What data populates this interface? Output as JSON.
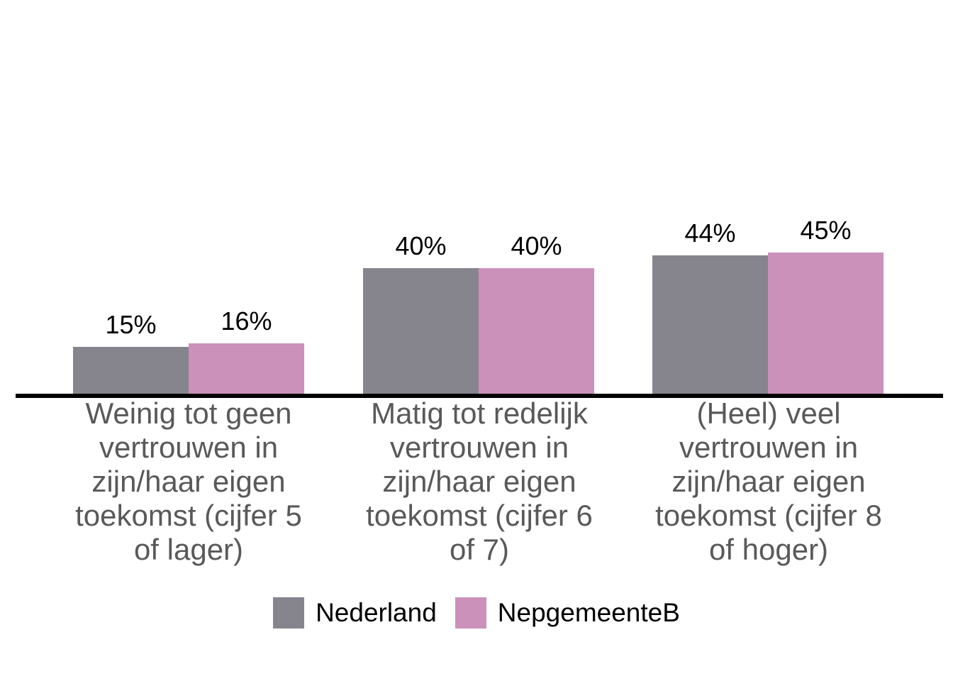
{
  "chart_data": {
    "type": "bar",
    "title": "",
    "xlabel": "",
    "ylabel": "",
    "ylim": [
      0,
      100
    ],
    "unit": "percent",
    "grid": false,
    "legend_position": "bottom-center",
    "background_color": "#FFFFFF",
    "axis_line_color": "#000000",
    "category_label_color": "#595959",
    "value_label_color": "#000000",
    "categories": [
      "Weinig tot geen\nvertrouwen in\nzijn/haar eigen\ntoekomst (cijfer 5\nof lager)",
      "Matig tot redelijk\nvertrouwen in\nzijn/haar eigen\ntoekomst (cijfer 6\nof 7)",
      "(Heel) veel\nvertrouwen in\nzijn/haar eigen\ntoekomst (cijfer 8\nof hoger)"
    ],
    "series": [
      {
        "name": "Nederland",
        "color": "#86848D",
        "values": [
          15,
          40,
          44
        ],
        "value_labels": [
          "15%",
          "40%",
          "44%"
        ]
      },
      {
        "name": "NepgemeenteB",
        "color": "#CB91BB",
        "values": [
          16,
          40,
          45
        ],
        "value_labels": [
          "16%",
          "40%",
          "45%"
        ]
      }
    ]
  }
}
